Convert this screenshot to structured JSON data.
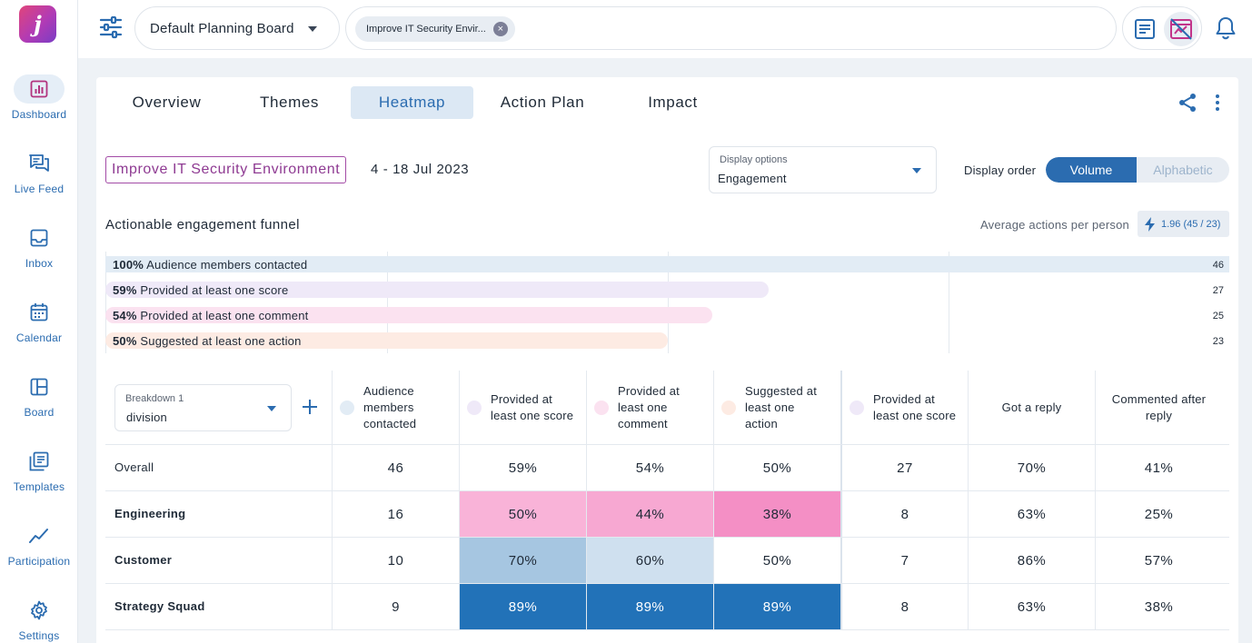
{
  "nav": {
    "logo_letter": "j",
    "items": [
      {
        "label": "Dashboard",
        "icon": "chart-icon"
      },
      {
        "label": "Live Feed",
        "icon": "chat-icon"
      },
      {
        "label": "Inbox",
        "icon": "inbox-icon"
      },
      {
        "label": "Calendar",
        "icon": "calendar-icon"
      },
      {
        "label": "Board",
        "icon": "board-icon"
      },
      {
        "label": "Templates",
        "icon": "templates-icon"
      },
      {
        "label": "Participation",
        "icon": "trend-icon"
      },
      {
        "label": "Settings",
        "icon": "gear-icon"
      }
    ]
  },
  "topbar": {
    "board": "Default Planning Board",
    "chip": "Improve IT Security Envir...",
    "chip_remove": "×"
  },
  "tabs": [
    "Overview",
    "Themes",
    "Heatmap",
    "Action Plan",
    "Impact"
  ],
  "active_tab": "Heatmap",
  "header": {
    "title": "Improve IT Security Environment",
    "date_range": "4 - 18 Jul 2023",
    "display_options_label": "Display options",
    "display_options_value": "Engagement",
    "display_order_label": "Display order",
    "order_options": [
      "Volume",
      "Alphabetic"
    ],
    "order_selected": "Volume"
  },
  "funnel": {
    "title": "Actionable engagement funnel",
    "avg_label": "Average actions per person",
    "avg_value": "1.96 (45 / 23)",
    "rows": [
      {
        "pct": "100%",
        "label": "Audience members contacted",
        "count": "46",
        "fraction": 1.0,
        "color": "#e2ecf5"
      },
      {
        "pct": "59%",
        "label": "Provided at least one score",
        "count": "27",
        "fraction": 0.59,
        "color": "#efe9f8"
      },
      {
        "pct": "54%",
        "label": "Provided at least one comment",
        "count": "25",
        "fraction": 0.54,
        "color": "#fbe2f0"
      },
      {
        "pct": "50%",
        "label": "Suggested at least one action",
        "count": "23",
        "fraction": 0.5,
        "color": "#fdebe3"
      }
    ]
  },
  "table": {
    "breakdown_label": "Breakdown 1",
    "breakdown_value": "division",
    "add_label": "+",
    "columns": [
      {
        "label": "Audience members contacted",
        "dot": "#e2ecf5"
      },
      {
        "label": "Provided at least one score",
        "dot": "#efe9f8"
      },
      {
        "label": "Provided at least one comment",
        "dot": "#fbe2f0"
      },
      {
        "label": "Suggested at least one action",
        "dot": "#fdebe3"
      },
      {
        "label": "Provided at least one score",
        "dot": "#efe9f8"
      },
      {
        "label": "Got a reply",
        "dot": ""
      },
      {
        "label": "Commented after reply",
        "dot": ""
      }
    ],
    "rows": [
      {
        "label": "Overall",
        "bold": false,
        "cells": [
          "46",
          "59%",
          "54%",
          "50%",
          "27",
          "70%",
          "41%"
        ],
        "colors": [
          "",
          "",
          "",
          "",
          "",
          "",
          ""
        ]
      },
      {
        "label": "Engineering",
        "bold": true,
        "cells": [
          "16",
          "50%",
          "44%",
          "38%",
          "8",
          "63%",
          "25%"
        ],
        "colors": [
          "",
          "#f9b3d8",
          "#f7a8d2",
          "#f48fc5",
          "",
          "",
          ""
        ]
      },
      {
        "label": "Customer",
        "bold": true,
        "cells": [
          "10",
          "70%",
          "60%",
          "50%",
          "7",
          "86%",
          "57%"
        ],
        "colors": [
          "",
          "#a6c6e1",
          "#cfe0ef",
          "",
          "",
          "",
          ""
        ]
      },
      {
        "label": "Strategy Squad",
        "bold": true,
        "cells": [
          "9",
          "89%",
          "89%",
          "89%",
          "8",
          "63%",
          "38%"
        ],
        "colors": [
          "",
          "#2272b8",
          "#2272b8",
          "#2272b8",
          "",
          "",
          ""
        ]
      }
    ]
  }
}
